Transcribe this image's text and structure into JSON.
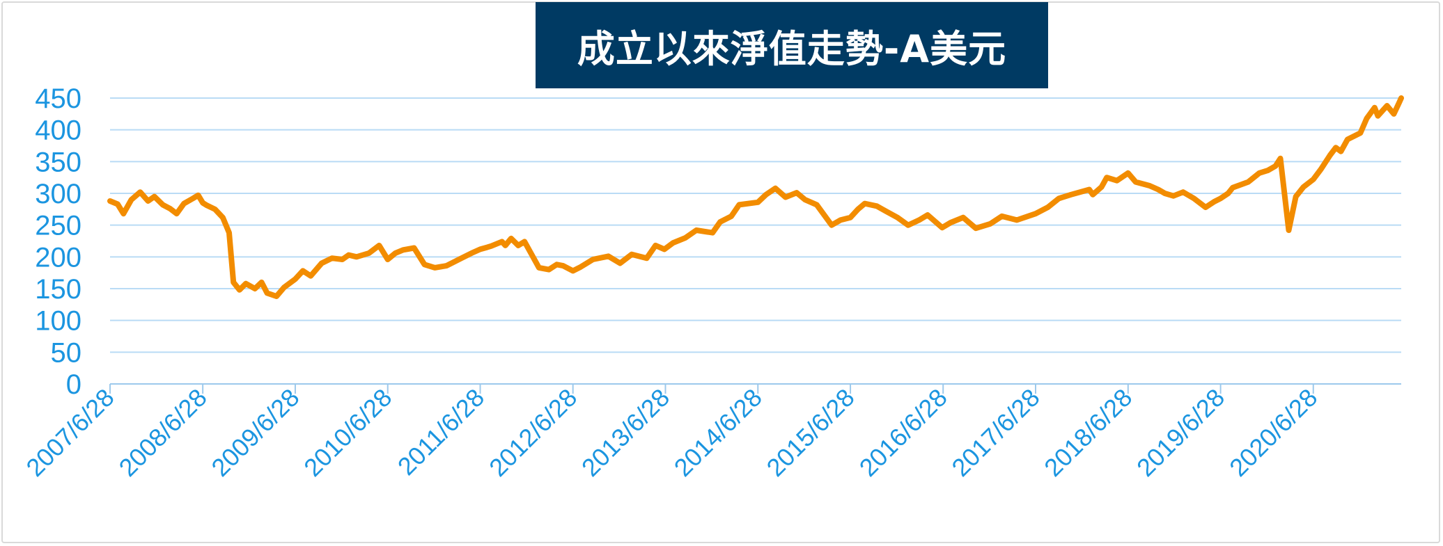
{
  "chart_data": {
    "type": "line",
    "title": "成立以來淨值走勢-A美元",
    "ylim": [
      0,
      450
    ],
    "yticks": [
      "450",
      "400",
      "350",
      "300",
      "250",
      "200",
      "150",
      "100",
      "50",
      "0"
    ],
    "xticks": [
      "2007/6/28",
      "2008/6/28",
      "2009/6/28",
      "2010/6/28",
      "2011/6/28",
      "2012/6/28",
      "2013/6/28",
      "2014/6/28",
      "2015/6/28",
      "2016/6/28",
      "2017/6/28",
      "2018/6/28",
      "2019/6/28",
      "2020/6/28"
    ],
    "grid": true,
    "legend": "none",
    "line_color": "#f28c00",
    "series": [
      {
        "x": [
          "2007-06-28",
          "2007-07-28",
          "2007-08-20",
          "2007-09-20",
          "2007-10-25",
          "2007-11-25",
          "2007-12-20",
          "2008-01-22",
          "2008-02-20",
          "2008-03-17",
          "2008-04-15",
          "2008-05-20",
          "2008-06-10",
          "2008-06-28",
          "2008-07-15",
          "2008-08-15",
          "2008-09-15",
          "2008-10-10",
          "2008-10-27",
          "2008-11-20",
          "2008-12-15",
          "2009-01-20",
          "2009-02-15",
          "2009-03-09",
          "2009-04-15",
          "2009-05-15",
          "2009-06-28",
          "2009-07-28",
          "2009-08-28",
          "2009-10-10",
          "2009-11-20",
          "2009-12-31",
          "2010-01-25",
          "2010-02-25",
          "2010-04-15",
          "2010-05-25",
          "2010-06-28",
          "2010-07-28",
          "2010-08-28",
          "2010-10-10",
          "2010-11-20",
          "2010-12-31",
          "2011-02-15",
          "2011-04-15",
          "2011-05-25",
          "2011-06-28",
          "2011-07-25",
          "2011-08-10",
          "2011-09-22",
          "2011-10-05",
          "2011-10-28",
          "2011-11-25",
          "2011-12-20",
          "2012-02-15",
          "2012-03-25",
          "2012-04-25",
          "2012-05-20",
          "2012-06-28",
          "2012-07-28",
          "2012-09-15",
          "2012-11-15",
          "2012-12-31",
          "2013-02-15",
          "2013-04-15",
          "2013-05-20",
          "2013-06-24",
          "2013-07-28",
          "2013-09-15",
          "2013-10-28",
          "2013-12-31",
          "2014-01-30",
          "2014-03-15",
          "2014-04-15",
          "2014-06-28",
          "2014-07-30",
          "2014-09-05",
          "2014-10-15",
          "2014-11-28",
          "2014-12-31",
          "2015-02-15",
          "2015-04-15",
          "2015-05-20",
          "2015-06-28",
          "2015-07-28",
          "2015-08-24",
          "2015-10-10",
          "2015-11-15",
          "2015-12-31",
          "2016-02-11",
          "2016-03-25",
          "2016-04-28",
          "2016-06-24",
          "2016-07-28",
          "2016-09-15",
          "2016-11-04",
          "2016-12-31",
          "2017-02-15",
          "2017-04-15",
          "2017-06-28",
          "2017-08-15",
          "2017-09-28",
          "2017-11-15",
          "2018-01-26",
          "2018-02-09",
          "2018-03-15",
          "2018-04-05",
          "2018-05-15",
          "2018-06-28",
          "2018-07-28",
          "2018-09-21",
          "2018-10-25",
          "2018-11-20",
          "2018-12-24",
          "2019-01-31",
          "2019-03-15",
          "2019-04-30",
          "2019-06-03",
          "2019-06-28",
          "2019-07-28",
          "2019-08-15",
          "2019-10-15",
          "2019-11-28",
          "2019-12-31",
          "2020-01-31",
          "2020-02-19",
          "2020-03-23",
          "2020-04-20",
          "2020-05-20",
          "2020-06-28",
          "2020-07-28",
          "2020-09-02",
          "2020-09-25",
          "2020-10-15",
          "2020-11-10",
          "2020-12-31",
          "2021-01-25",
          "2021-02-25",
          "2021-03-10",
          "2021-04-15",
          "2021-05-12",
          "2021-06-01",
          "2021-06-10"
        ],
        "y": [
          288,
          283,
          268,
          290,
          302,
          288,
          295,
          282,
          276,
          268,
          284,
          292,
          297,
          285,
          281,
          275,
          262,
          238,
          160,
          148,
          158,
          150,
          160,
          143,
          138,
          152,
          165,
          178,
          170,
          190,
          198,
          196,
          203,
          200,
          206,
          218,
          196,
          206,
          211,
          214,
          188,
          183,
          186,
          198,
          206,
          212,
          215,
          217,
          224,
          218,
          229,
          218,
          224,
          183,
          180,
          188,
          186,
          178,
          184,
          196,
          201,
          190,
          204,
          198,
          218,
          212,
          222,
          230,
          242,
          238,
          255,
          264,
          282,
          286,
          298,
          308,
          294,
          301,
          290,
          282,
          250,
          258,
          262,
          275,
          284,
          280,
          272,
          262,
          250,
          258,
          266,
          246,
          254,
          262,
          245,
          252,
          264,
          258,
          268,
          278,
          292,
          298,
          306,
          298,
          310,
          325,
          320,
          332,
          318,
          312,
          306,
          300,
          296,
          302,
          292,
          278,
          287,
          292,
          300,
          309,
          318,
          332,
          336,
          343,
          355,
          242,
          295,
          310,
          322,
          338,
          360,
          372,
          366,
          385,
          395,
          418,
          435,
          422,
          438,
          425,
          442,
          450
        ]
      }
    ]
  }
}
